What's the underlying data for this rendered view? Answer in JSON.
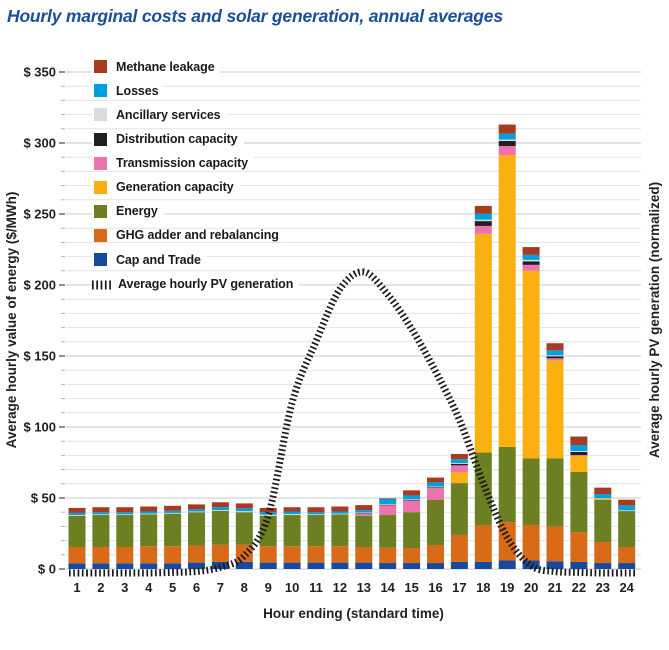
{
  "title": "Hourly marginal costs and solar generation, annual averages",
  "legend": {
    "entries": [
      {
        "label": "Methane leakage",
        "symbol": "swatch",
        "color": "#A63B22"
      },
      {
        "label": "Losses",
        "symbol": "swatch",
        "color": "#00A0DC"
      },
      {
        "label": "Ancillary services",
        "symbol": "swatch",
        "color": "#D8DCDE"
      },
      {
        "label": "Distribution capacity",
        "symbol": "swatch",
        "color": "#231F20"
      },
      {
        "label": "Transmission capacity",
        "symbol": "swatch",
        "color": "#EE72AC"
      },
      {
        "label": "Generation capacity",
        "symbol": "swatch",
        "color": "#FBB012"
      },
      {
        "label": "Energy",
        "symbol": "swatch",
        "color": "#6C7F22"
      },
      {
        "label": "GHG adder and rebalancing",
        "symbol": "swatch",
        "color": "#D96A18"
      },
      {
        "label": "Cap and Trade",
        "symbol": "swatch",
        "color": "#174A9C"
      },
      {
        "label": "Average hourly PV generation",
        "symbol": "dashed-line",
        "color": "#1A1A1A"
      }
    ]
  },
  "chart_data": {
    "type": "bar",
    "subtype": "stacked-bars-with-line-overlay",
    "title": "Hourly marginal costs and solar generation, annual averages",
    "xlabel": "Hour ending (standard time)",
    "ylabel_left": "Average hourly value of energy ($/MWh)",
    "ylabel_right": "Average hourly PV generation (normalized)",
    "ylim": [
      0,
      350
    ],
    "y_major_step": 50,
    "y_minor_step": 10,
    "y_tick_labels": [
      "$ 0",
      "$ 50",
      "$ 100",
      "$ 150",
      "$ 200",
      "$ 250",
      "$ 300",
      "$ 350"
    ],
    "grid": "on",
    "legend_position": "upper-left-inside",
    "x": [
      1,
      2,
      3,
      4,
      5,
      6,
      7,
      8,
      9,
      10,
      11,
      12,
      13,
      14,
      15,
      16,
      17,
      18,
      19,
      20,
      21,
      22,
      23,
      24
    ],
    "series": [
      {
        "name": "Cap and Trade",
        "color": "#174A9C",
        "values": [
          4,
          4,
          4,
          4,
          4,
          4.5,
          5,
          5,
          4.5,
          4.5,
          4.5,
          4.5,
          4.5,
          4.2,
          4.2,
          4.2,
          5,
          5,
          6,
          6,
          5.5,
          5,
          4.2,
          4.2
        ]
      },
      {
        "name": "GHG adder and rebalancing",
        "color": "#D96A18",
        "values": [
          11.5,
          11.5,
          11.5,
          12,
          12,
          12,
          12,
          12,
          11.5,
          11.5,
          11.5,
          11.5,
          11,
          10.8,
          10.6,
          12.7,
          19,
          26,
          27,
          25,
          24.5,
          21,
          14.8,
          11.3
        ]
      },
      {
        "name": "Energy",
        "color": "#6C7F22",
        "values": [
          22,
          22.5,
          22.5,
          22.5,
          23,
          23.5,
          24,
          23,
          21.5,
          22,
          22,
          22.5,
          22,
          23,
          25.2,
          31.7,
          36.5,
          51,
          53,
          47,
          48,
          42.3,
          29.6,
          25.3
        ]
      },
      {
        "name": "Generation capacity",
        "color": "#FBB012",
        "values": [
          0,
          0,
          0,
          0,
          0,
          0,
          0,
          0,
          0,
          0,
          0,
          0,
          0,
          0,
          0,
          0,
          7.5,
          154,
          205.5,
          132,
          69,
          11.3,
          0.7,
          0
        ]
      },
      {
        "name": "Transmission capacity",
        "color": "#EE72AC",
        "values": [
          0,
          0,
          0,
          0,
          0,
          0,
          0,
          0,
          0,
          0,
          0,
          0,
          1.5,
          7,
          8.2,
          8.5,
          5,
          5.6,
          6.4,
          4.2,
          1.4,
          0.7,
          0,
          0
        ]
      },
      {
        "name": "Distribution capacity",
        "color": "#231F20",
        "values": [
          0,
          0,
          0,
          0,
          0,
          0,
          0,
          0,
          0,
          0,
          0,
          0,
          0.3,
          0.3,
          0.3,
          0.5,
          1,
          3.4,
          3.5,
          2.5,
          1.4,
          2.1,
          0,
          0
        ]
      },
      {
        "name": "Ancillary services",
        "color": "#D8DCDE",
        "values": [
          0.5,
          0.5,
          0.5,
          0.5,
          0.5,
          0.5,
          0.5,
          0.7,
          0.7,
          0.7,
          0.5,
          0.5,
          0.5,
          0.5,
          0.5,
          0.5,
          0.5,
          1,
          1,
          1,
          0.7,
          0.7,
          0.5,
          0.5
        ]
      },
      {
        "name": "Losses",
        "color": "#00A0DC",
        "values": [
          1.5,
          1.5,
          1.5,
          1.5,
          1.5,
          1.5,
          2,
          2,
          1.8,
          1.8,
          1.5,
          1.5,
          1.7,
          3.6,
          2.8,
          2.9,
          2.8,
          4.2,
          4.2,
          3.5,
          3.5,
          4.2,
          3,
          3.5
        ]
      },
      {
        "name": "Methane leakage",
        "color": "#A63B22",
        "values": [
          3.5,
          3.5,
          3.5,
          3.5,
          3.5,
          3.5,
          3.5,
          3.5,
          3,
          3,
          3.5,
          3.5,
          3.5,
          0.3,
          3.6,
          3.4,
          3.7,
          5.5,
          6.4,
          5.5,
          5,
          6,
          4.5,
          4
        ]
      }
    ],
    "line_series": {
      "name": "Average hourly PV generation",
      "style": "dashed",
      "color": "#1A1A1A",
      "axis": "right-normalized",
      "peak_left_axis_equivalent": 212,
      "values_normalized": [
        0,
        0,
        0,
        0,
        0.002,
        0.005,
        0.019,
        0.057,
        0.19,
        0.566,
        0.769,
        0.943,
        1.0,
        0.925,
        0.811,
        0.67,
        0.509,
        0.297,
        0.118,
        0.024,
        0.005,
        0.002,
        0,
        0
      ]
    }
  }
}
